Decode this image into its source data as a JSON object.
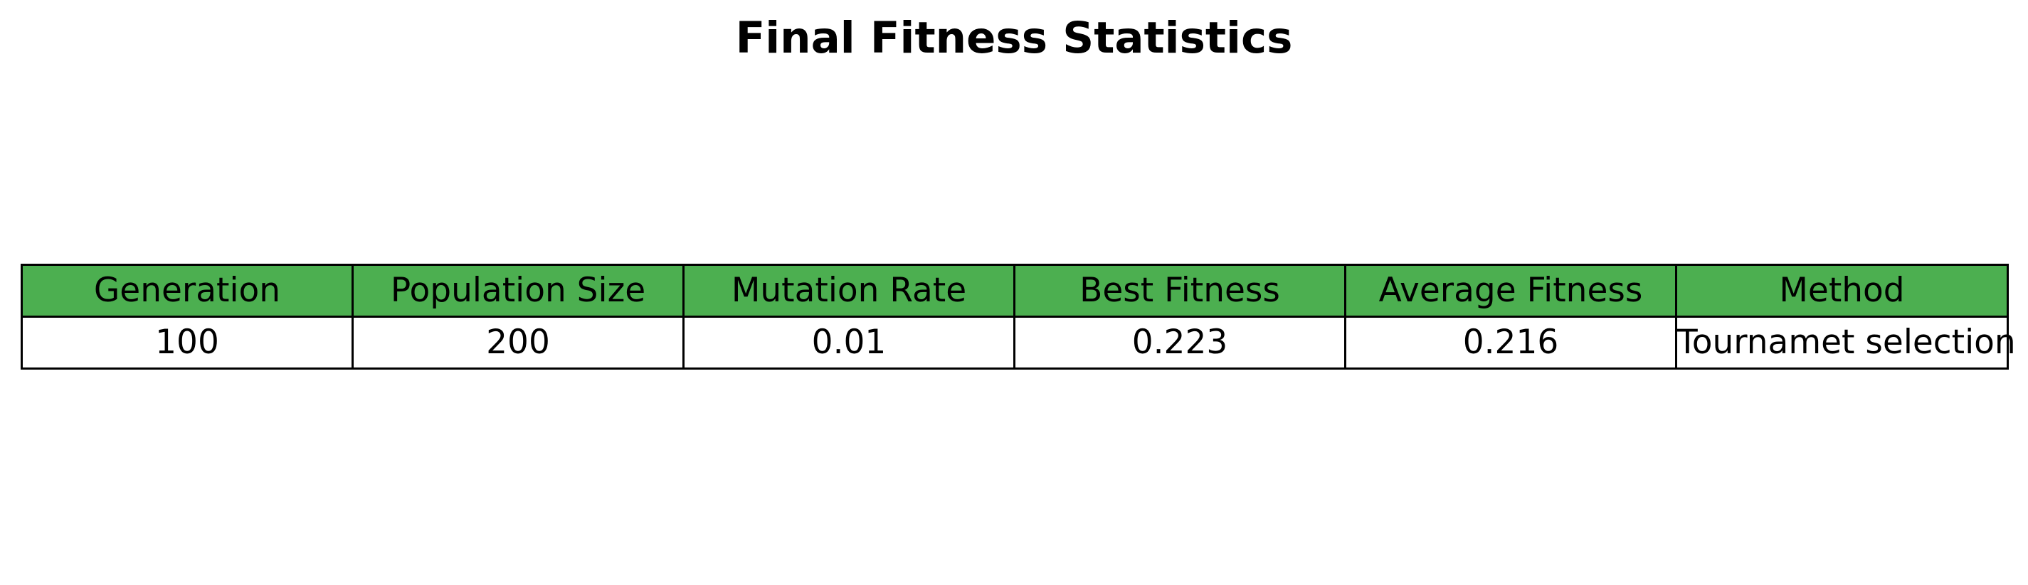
{
  "title": "Final Fitness Statistics",
  "header_color": "#4caf50",
  "chart_data": {
    "type": "table",
    "title": "Final Fitness Statistics",
    "columns": [
      "Generation",
      "Population Size",
      "Mutation Rate",
      "Best Fitness",
      "Average Fitness",
      "Method"
    ],
    "rows": [
      [
        "100",
        "200",
        "0.01",
        "0.223",
        "0.216",
        "Tournamet selection"
      ]
    ]
  }
}
